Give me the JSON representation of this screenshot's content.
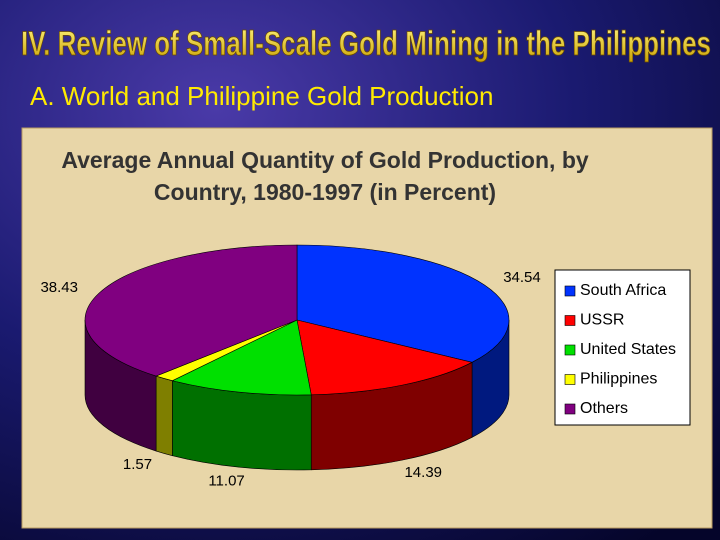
{
  "slide": {
    "title": "IV.  Review of Small-Scale Gold Mining in the Philippines",
    "subtitle": "A.  World and Philippine Gold Production"
  },
  "chart_data": {
    "type": "pie3d",
    "title": "Average Annual Quantity of Gold Production, by Country, 1980-1997 (in Percent)",
    "categories": [
      "South Africa",
      "USSR",
      "United States",
      "Philippines",
      "Others"
    ],
    "values": [
      34.54,
      14.39,
      11.07,
      1.57,
      38.43
    ],
    "colors": [
      "#0033ff",
      "#ff0000",
      "#00e000",
      "#ffff00",
      "#800080"
    ],
    "legend": "right"
  }
}
